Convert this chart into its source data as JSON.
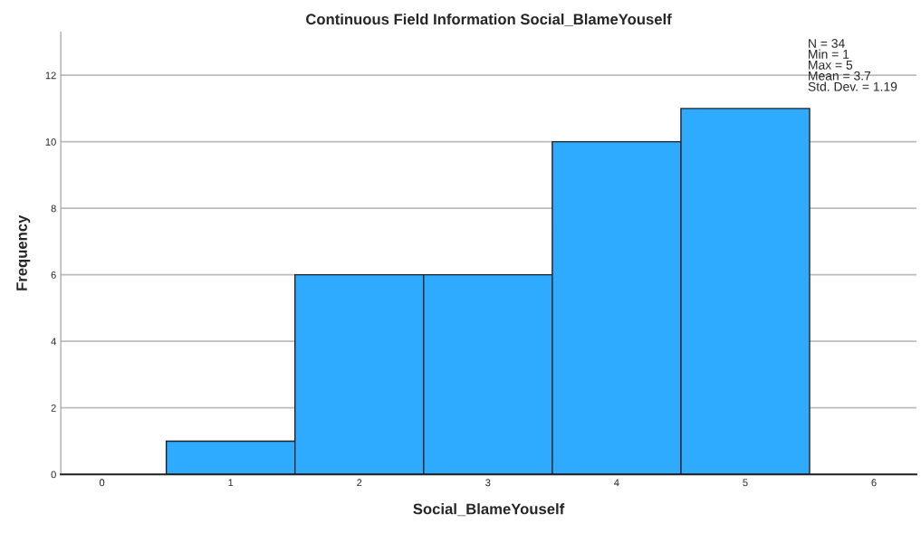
{
  "chart_data": {
    "type": "histogram",
    "title": "Continuous Field Information Social_BlameYouself",
    "xlabel": "Social_BlameYouself",
    "ylabel": "Frequency",
    "bins": [
      0.5,
      1.5,
      2.5,
      3.5,
      4.5,
      5.5
    ],
    "values": [
      1,
      6,
      6,
      10,
      11
    ],
    "color": "#2eaaff",
    "xlim": [
      -0.32,
      6.33
    ],
    "xticks": [
      0,
      1,
      2,
      3,
      4,
      5,
      6
    ],
    "ylim": [
      0,
      13.3
    ],
    "yticks": [
      0,
      2,
      4,
      6,
      8,
      10,
      12
    ],
    "grid": "y",
    "annotations": [
      "N = 34\nMin = 1\nMax = 5\nMean = 3.7\nStd. Dev. = 1.19"
    ]
  }
}
